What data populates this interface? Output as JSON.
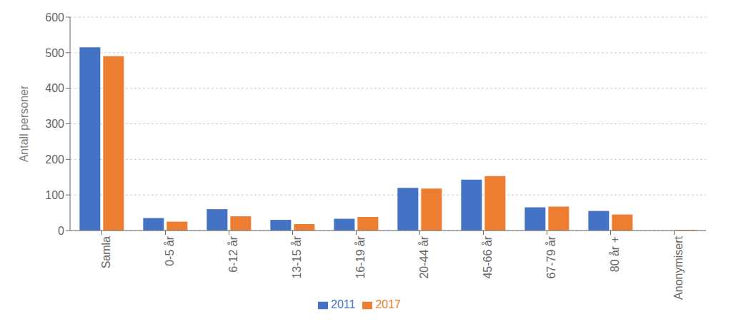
{
  "chart_data": {
    "type": "bar",
    "ylabel": "Antall personer",
    "categories": [
      "Samla",
      "0-5 år",
      "6-12 år",
      "13-15 år",
      "16-19 år",
      "20-44 år",
      "45-66 år",
      "67-79 år",
      "80 år +",
      "Anonymisert"
    ],
    "series": [
      {
        "name": "2011",
        "color": "#4472C4",
        "values": [
          515,
          35,
          60,
          30,
          33,
          120,
          143,
          65,
          55,
          0
        ]
      },
      {
        "name": "2017",
        "color": "#ED7D31",
        "values": [
          490,
          25,
          40,
          18,
          38,
          118,
          153,
          67,
          45,
          2
        ]
      }
    ],
    "ylim": [
      0,
      600
    ],
    "yticks": [
      0,
      100,
      200,
      300,
      400,
      500,
      600
    ],
    "grid": true,
    "legend": "bottom"
  }
}
